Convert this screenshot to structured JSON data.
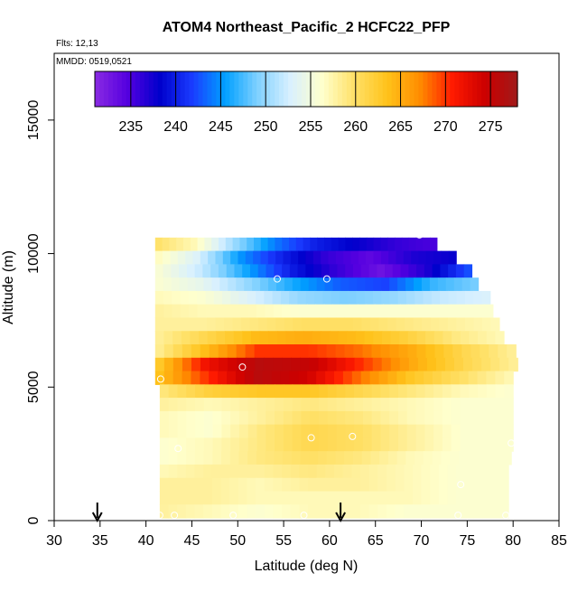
{
  "chart_data": {
    "type": "heatmap",
    "title": "ATOM4 Northeast_Pacific_2 HCFC22_PFP",
    "annotations": [
      "Flts: 12,13",
      "MMDD: 0519,0521"
    ],
    "xlabel": "Latitude (deg N)",
    "ylabel": "Altitude (m)",
    "xlim": [
      30,
      85
    ],
    "ylim": [
      0,
      17500
    ],
    "x_ticks": [
      30,
      35,
      40,
      45,
      50,
      55,
      60,
      65,
      70,
      75,
      80,
      85
    ],
    "y_ticks": [
      0,
      5000,
      10000,
      15000
    ],
    "colorbar": {
      "range": [
        231,
        278
      ],
      "ticks": [
        235,
        240,
        245,
        250,
        255,
        260,
        265,
        270,
        275
      ],
      "colors": [
        "#8a2be2",
        "#5500e0",
        "#0000cc",
        "#1a3cff",
        "#00a0ff",
        "#7fd0ff",
        "#d8f0ff",
        "#ffffcc",
        "#ffe066",
        "#ffc21a",
        "#ff8c00",
        "#ff1a00",
        "#cc0000",
        "#a01a1a"
      ]
    },
    "arrows_x": [
      34.7,
      61.2
    ],
    "samples": [
      {
        "lat": 69.8,
        "alt": 10700
      },
      {
        "lat": 54.3,
        "alt": 9050
      },
      {
        "lat": 59.7,
        "alt": 9050
      },
      {
        "lat": 76.8,
        "alt": 8850
      },
      {
        "lat": 50.5,
        "alt": 5750
      },
      {
        "lat": 41.6,
        "alt": 5300
      },
      {
        "lat": 43.5,
        "alt": 2700
      },
      {
        "lat": 58.0,
        "alt": 3100
      },
      {
        "lat": 62.5,
        "alt": 3150
      },
      {
        "lat": 79.8,
        "alt": 2900
      },
      {
        "lat": 74.3,
        "alt": 1350
      },
      {
        "lat": 41.5,
        "alt": 200
      },
      {
        "lat": 43.1,
        "alt": 200
      },
      {
        "lat": 49.5,
        "alt": 200
      },
      {
        "lat": 57.2,
        "alt": 200
      },
      {
        "lat": 74.0,
        "alt": 200
      },
      {
        "lat": 79.2,
        "alt": 200
      }
    ],
    "field": [
      {
        "alt": 10350,
        "lat_range": [
          41.0,
          71.7
        ],
        "values": [
          260,
          257,
          250,
          244,
          240,
          238,
          236,
          235
        ]
      },
      {
        "alt": 9850,
        "lat_range": [
          41.0,
          73.8
        ],
        "values": [
          257,
          253,
          245,
          240,
          236,
          234,
          237,
          238
        ]
      },
      {
        "lat_range": [
          41.0,
          75.5
        ],
        "alt": 9350,
        "values": [
          256,
          252,
          246,
          240,
          236,
          233,
          237,
          243
        ]
      },
      {
        "alt": 8850,
        "lat_range": [
          41.0,
          76.2
        ],
        "values": [
          256,
          254,
          250,
          246,
          243,
          242,
          247,
          249
        ]
      },
      {
        "alt": 8350,
        "lat_range": [
          41.0,
          77.5
        ],
        "values": [
          257,
          256,
          253,
          250,
          249,
          250,
          252,
          253
        ]
      },
      {
        "alt": 7850,
        "lat_range": [
          41.0,
          77.8
        ],
        "values": [
          258,
          257,
          257,
          256,
          256,
          256,
          256,
          256
        ]
      },
      {
        "alt": 7350,
        "lat_range": [
          41.0,
          78.5
        ],
        "values": [
          258,
          258,
          259,
          260,
          260,
          259,
          258,
          257
        ]
      },
      {
        "alt": 6850,
        "lat_range": [
          41.0,
          79.0
        ],
        "values": [
          258,
          261,
          264,
          265,
          264,
          262,
          259,
          257
        ]
      },
      {
        "alt": 6350,
        "lat_range": [
          41.0,
          80.3
        ],
        "values": [
          258,
          264,
          270,
          270,
          268,
          265,
          261,
          258
        ]
      },
      {
        "alt": 5850,
        "lat_range": [
          41.0,
          80.5
        ],
        "values": [
          262,
          272,
          276,
          275,
          270,
          265,
          261,
          258
        ]
      },
      {
        "alt": 5350,
        "lat_range": [
          41.0,
          80.0
        ],
        "values": [
          263,
          270,
          276,
          274,
          268,
          263,
          260,
          257
        ]
      },
      {
        "lat_range": [
          41.5,
          80.0
        ],
        "alt": 4850,
        "values": [
          259,
          262,
          263,
          263,
          261,
          259,
          257,
          256
        ]
      },
      {
        "alt": 4350,
        "lat_range": [
          41.5,
          80.0
        ],
        "values": [
          258,
          257,
          258,
          259,
          258,
          257,
          256,
          256
        ]
      },
      {
        "alt": 3850,
        "lat_range": [
          41.5,
          80.0
        ],
        "values": [
          257,
          256,
          258,
          260,
          259,
          257,
          256,
          256
        ]
      },
      {
        "alt": 3350,
        "lat_range": [
          41.5,
          80.0
        ],
        "values": [
          257,
          256,
          259,
          261,
          260,
          258,
          256,
          256
        ]
      },
      {
        "alt": 2850,
        "lat_range": [
          41.5,
          80.0
        ],
        "values": [
          256,
          257,
          259,
          261,
          260,
          258,
          256,
          256
        ]
      },
      {
        "alt": 2350,
        "lat_range": [
          41.5,
          79.8
        ],
        "values": [
          256,
          257,
          259,
          260,
          259,
          257,
          256,
          256
        ]
      },
      {
        "alt": 1850,
        "lat_range": [
          41.5,
          79.5
        ],
        "values": [
          257,
          258,
          258,
          259,
          258,
          257,
          256,
          256
        ]
      },
      {
        "alt": 1350,
        "lat_range": [
          41.5,
          79.5
        ],
        "values": [
          258,
          258,
          257,
          258,
          258,
          257,
          256,
          256
        ]
      },
      {
        "alt": 850,
        "lat_range": [
          41.5,
          79.5
        ],
        "values": [
          258,
          258,
          257,
          257,
          257,
          257,
          256,
          256
        ]
      },
      {
        "alt": 350,
        "lat_range": [
          41.5,
          79.5
        ],
        "values": [
          258,
          257,
          256,
          257,
          257,
          256,
          256,
          256
        ]
      }
    ]
  }
}
